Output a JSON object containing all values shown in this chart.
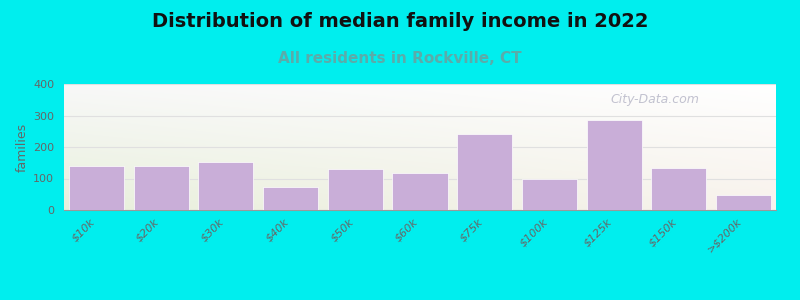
{
  "title": "Distribution of median family income in 2022",
  "subtitle": "All residents in Rockville, CT",
  "ylabel": "families",
  "categories": [
    "$10k",
    "$20k",
    "$30k",
    "$40k",
    "$50k",
    "$60k",
    "$75k",
    "$100k",
    "$125k",
    "$150k",
    ">$200k"
  ],
  "values": [
    140,
    140,
    152,
    72,
    130,
    118,
    242,
    100,
    285,
    132,
    47
  ],
  "bar_color": "#c9aed8",
  "bar_edgecolor": "#ffffff",
  "background_color": "#00eeee",
  "plot_bg_color_topleft": "#e8f0dc",
  "plot_bg_color_right": "#f5f0ea",
  "title_fontsize": 14,
  "subtitle_fontsize": 11,
  "subtitle_color": "#5aacaa",
  "ylabel_fontsize": 9,
  "tick_fontsize": 8,
  "ylim": [
    0,
    400
  ],
  "yticks": [
    0,
    100,
    200,
    300,
    400
  ],
  "watermark_text": "City-Data.com",
  "watermark_color": "#b8b8c8",
  "grid_color": "#e0e0e0"
}
